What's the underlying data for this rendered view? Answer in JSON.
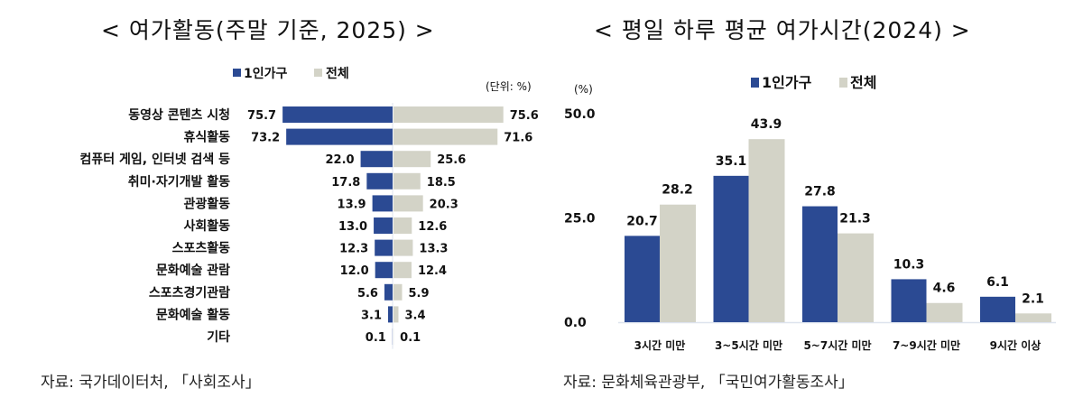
{
  "chart_data": [
    {
      "type": "bar",
      "orientation": "horizontal-diverging",
      "title": "< 여가활동(주말 기준, 2025) >",
      "unit_label": "(단위: %)",
      "legend": [
        "1인가구",
        "전체"
      ],
      "legend_position": "top",
      "categories": [
        "동영상 콘텐츠 시청",
        "휴식활동",
        "컴퓨터 게임, 인터넷 검색 등",
        "취미·자기개발 활동",
        "관광활동",
        "사회활동",
        "스포츠활동",
        "문화예술 관람",
        "스포츠경기관람",
        "문화예술 활동",
        "기타"
      ],
      "series": [
        {
          "name": "1인가구",
          "color": "#2b4a93",
          "values": [
            75.7,
            73.2,
            22.0,
            17.8,
            13.9,
            13.0,
            12.3,
            12.0,
            5.6,
            3.1,
            0.1
          ]
        },
        {
          "name": "전체",
          "color": "#d3d3c7",
          "values": [
            75.6,
            71.6,
            25.6,
            18.5,
            20.3,
            12.6,
            13.3,
            12.4,
            5.9,
            3.4,
            0.1
          ]
        }
      ],
      "xlim": [
        0,
        80
      ],
      "source": "자료:  국가데이터처, 「사회조사」"
    },
    {
      "type": "bar",
      "title": "< 평일 하루 평균 여가시간(2024) >",
      "ylabel": "(%)",
      "legend": [
        "1인가구",
        "전체"
      ],
      "legend_position": "top",
      "categories": [
        "3시간 미만",
        "3~5시간 미만",
        "5~7시간 미만",
        "7~9시간 미만",
        "9시간 이상"
      ],
      "series": [
        {
          "name": "1인가구",
          "color": "#2b4a93",
          "values": [
            20.7,
            35.1,
            27.8,
            10.3,
            6.1
          ]
        },
        {
          "name": "전체",
          "color": "#d3d3c7",
          "values": [
            28.2,
            43.9,
            21.3,
            4.6,
            2.1
          ]
        }
      ],
      "ylim": [
        0,
        50
      ],
      "yticks": [
        "0.0",
        "25.0",
        "50.0"
      ],
      "source": "자료:  문화체육관광부, 「국민여가활동조사」"
    }
  ]
}
